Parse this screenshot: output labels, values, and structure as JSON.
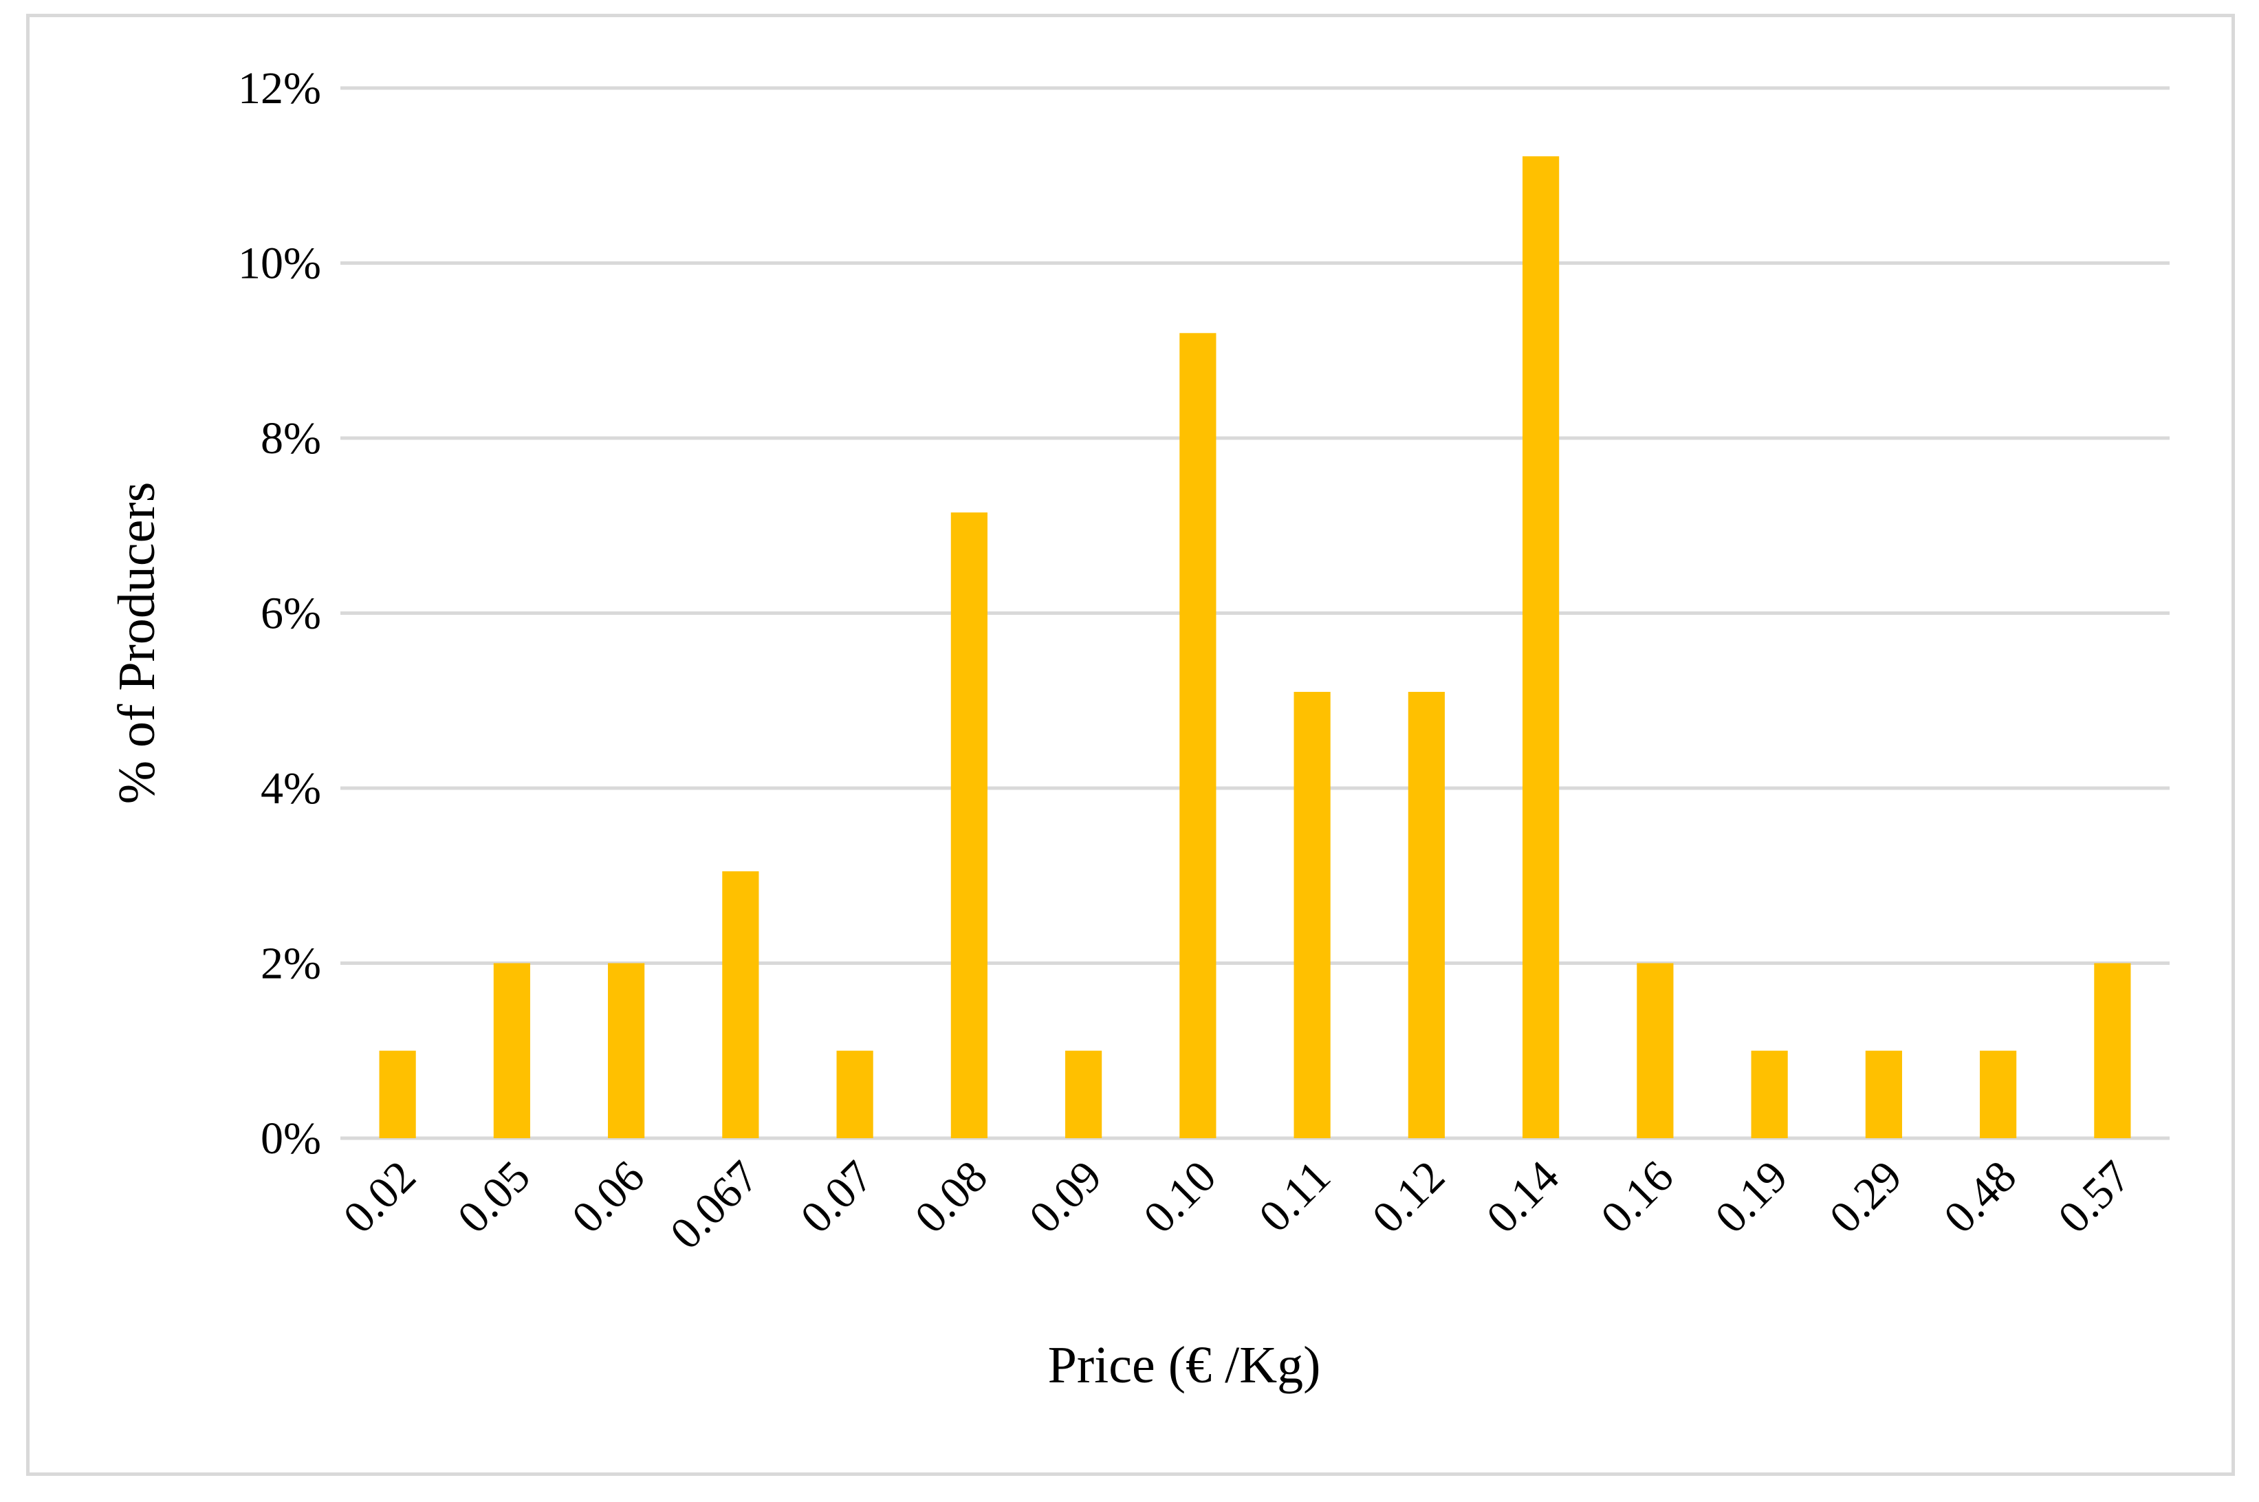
{
  "chart_data": {
    "type": "bar",
    "title": "",
    "xlabel": "Price (€ /Kg)",
    "ylabel": "% of Producers",
    "categories": [
      "0.02",
      "0.05",
      "0.06",
      "0.067",
      "0.07",
      "0.08",
      "0.09",
      "0.10",
      "0.11",
      "0.12",
      "0.14",
      "0.16",
      "0.19",
      "0.29",
      "0.48",
      "0.57"
    ],
    "values": [
      1.0,
      2.0,
      2.0,
      3.05,
      1.0,
      7.15,
      1.0,
      9.2,
      5.1,
      5.1,
      11.22,
      2.0,
      1.0,
      1.0,
      1.0,
      2.0
    ],
    "ylim": [
      0,
      12
    ],
    "yticks": [
      0,
      2,
      4,
      6,
      8,
      10,
      12
    ],
    "ytick_labels": [
      "0%",
      "2%",
      "4%",
      "6%",
      "8%",
      "10%",
      "12%"
    ],
    "grid": true,
    "legend": "none",
    "bar_color": "#FFC000",
    "grid_color": "#D9D9D9"
  }
}
